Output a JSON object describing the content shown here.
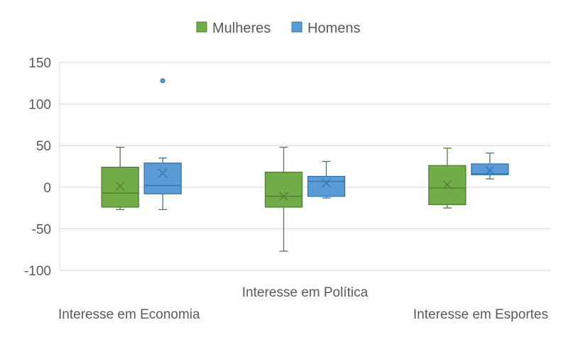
{
  "chart_data": {
    "type": "box",
    "categories": [
      "Interesse em Economia",
      "Interesse em Política",
      "Interesse em Esportes"
    ],
    "ylim": [
      -100,
      150
    ],
    "yticks": [
      150,
      100,
      50,
      0,
      -50,
      -100
    ],
    "grid": true,
    "legend_position": "top",
    "series": [
      {
        "name": "Mulheres",
        "color": "#70ad47",
        "stroke": "#507e32",
        "boxes": [
          {
            "min": -27,
            "q1": -24,
            "median": -7,
            "q3": 24,
            "max": 48,
            "mean": 1,
            "outliers": []
          },
          {
            "min": -77,
            "q1": -24,
            "median": -11,
            "q3": 18,
            "max": 48,
            "mean": -11,
            "outliers": []
          },
          {
            "min": -25,
            "q1": -21,
            "median": -1,
            "q3": 26,
            "max": 47,
            "mean": 3,
            "outliers": []
          }
        ]
      },
      {
        "name": "Homens",
        "color": "#5b9bd5",
        "stroke": "#2e75b6",
        "boxes": [
          {
            "min": -27,
            "q1": -8,
            "median": 2,
            "q3": 29,
            "max": 35,
            "mean": 17,
            "outliers": [
              128
            ]
          },
          {
            "min": -13,
            "q1": -11,
            "median": 7,
            "q3": 13,
            "max": 31,
            "mean": 5,
            "outliers": []
          },
          {
            "min": 10,
            "q1": 15,
            "median": 16,
            "q3": 28,
            "max": 41,
            "mean": 20,
            "outliers": []
          }
        ]
      }
    ]
  }
}
